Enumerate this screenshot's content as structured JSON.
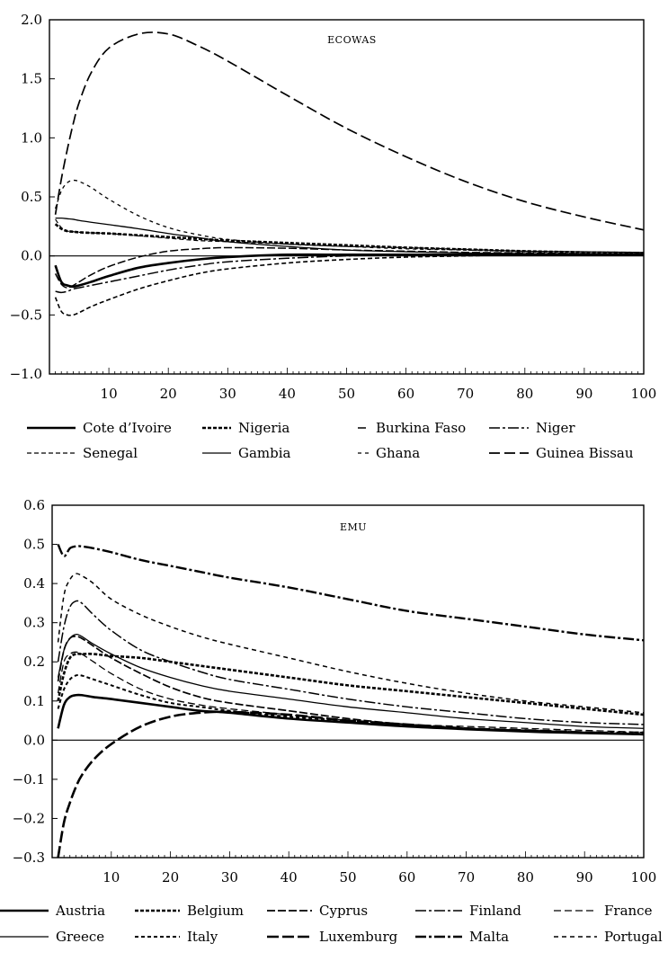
{
  "chart_data": [
    {
      "type": "line",
      "title": "ECOWAS",
      "xlabel": "",
      "ylabel": "",
      "xlim": [
        0,
        100
      ],
      "ylim": [
        -1.0,
        2.0
      ],
      "xticks": [
        10,
        20,
        30,
        40,
        50,
        60,
        70,
        80,
        90,
        100
      ],
      "xtick_labels": [
        "10",
        "20",
        "30",
        "40",
        "50",
        "60",
        "70",
        "80",
        "90",
        "100"
      ],
      "yticks": [
        -1.0,
        -0.5,
        0.0,
        0.5,
        1.0,
        1.5,
        2.0
      ],
      "ytick_labels": [
        "−1.0",
        "−0.5",
        "0.0",
        "0.5",
        "1.0",
        "1.5",
        "2.0"
      ],
      "zero_line": true,
      "grid": false,
      "legend_position": "bottom",
      "x": [
        1,
        2,
        3,
        4,
        5,
        7,
        10,
        15,
        20,
        25,
        30,
        40,
        50,
        60,
        70,
        80,
        90,
        100
      ],
      "series": [
        {
          "name": "Cote d’Ivoire",
          "dash": "solid",
          "width": 2.6,
          "values": [
            -0.08,
            -0.22,
            -0.25,
            -0.26,
            -0.25,
            -0.22,
            -0.17,
            -0.1,
            -0.06,
            -0.03,
            -0.01,
            0.01,
            0.01,
            0.01,
            0.01,
            0.01,
            0.01,
            0.01
          ]
        },
        {
          "name": "Nigeria",
          "dash": "4 2",
          "width": 2.6,
          "values": [
            0.27,
            0.23,
            0.21,
            0.205,
            0.2,
            0.195,
            0.19,
            0.175,
            0.16,
            0.145,
            0.13,
            0.11,
            0.09,
            0.07,
            0.055,
            0.04,
            0.03,
            0.02
          ]
        },
        {
          "name": "Burkina Faso",
          "dash": "9 3",
          "width": 1.5,
          "values": [
            -0.15,
            -0.24,
            -0.27,
            -0.25,
            -0.22,
            -0.16,
            -0.09,
            -0.01,
            0.04,
            0.06,
            0.07,
            0.065,
            0.05,
            0.04,
            0.03,
            0.025,
            0.02,
            0.02
          ]
        },
        {
          "name": "Niger",
          "dash": "12 3 3 3",
          "width": 1.5,
          "values": [
            -0.3,
            -0.31,
            -0.3,
            -0.28,
            -0.27,
            -0.25,
            -0.22,
            -0.17,
            -0.12,
            -0.08,
            -0.05,
            -0.02,
            0.0,
            0.01,
            0.01,
            0.01,
            0.01,
            0.01
          ]
        },
        {
          "name": "Senegal",
          "dash": "5 3",
          "width": 1.2,
          "values": [
            0.31,
            0.24,
            0.21,
            0.205,
            0.2,
            0.195,
            0.19,
            0.17,
            0.15,
            0.13,
            0.12,
            0.1,
            0.08,
            0.07,
            0.055,
            0.04,
            0.035,
            0.03
          ]
        },
        {
          "name": "Gambia",
          "dash": "solid",
          "width": 1.3,
          "values": [
            0.32,
            0.32,
            0.315,
            0.31,
            0.3,
            0.285,
            0.265,
            0.23,
            0.19,
            0.155,
            0.12,
            0.08,
            0.05,
            0.035,
            0.025,
            0.02,
            0.015,
            0.015
          ]
        },
        {
          "name": "Ghana",
          "dash": "4 4",
          "width": 1.3,
          "values": [
            0.4,
            0.55,
            0.62,
            0.64,
            0.63,
            0.58,
            0.48,
            0.34,
            0.24,
            0.18,
            0.14,
            0.1,
            0.08,
            0.06,
            0.05,
            0.04,
            0.035,
            0.03
          ]
        },
        {
          "name": "Guinea Bissau",
          "dash": "12 5",
          "width": 1.7,
          "values": [
            0.35,
            0.65,
            0.9,
            1.12,
            1.3,
            1.55,
            1.76,
            1.88,
            1.88,
            1.78,
            1.65,
            1.36,
            1.08,
            0.84,
            0.63,
            0.46,
            0.33,
            0.22
          ]
        },
        {
          "name": "",
          "dash": "5 3",
          "width": 1.6,
          "values": [
            -0.35,
            -0.47,
            -0.5,
            -0.5,
            -0.48,
            -0.43,
            -0.37,
            -0.28,
            -0.21,
            -0.15,
            -0.11,
            -0.06,
            -0.03,
            -0.01,
            0.0,
            0.01,
            0.01,
            0.01
          ]
        }
      ]
    },
    {
      "type": "line",
      "title": "EMU",
      "xlabel": "",
      "ylabel": "",
      "xlim": [
        0,
        100
      ],
      "ylim": [
        -0.3,
        0.6
      ],
      "xticks": [
        10,
        20,
        30,
        40,
        50,
        60,
        70,
        80,
        90,
        100
      ],
      "xtick_labels": [
        "10",
        "20",
        "30",
        "40",
        "50",
        "60",
        "70",
        "80",
        "90",
        "100"
      ],
      "yticks": [
        -0.3,
        -0.2,
        -0.1,
        0.0,
        0.1,
        0.2,
        0.3,
        0.4,
        0.5,
        0.6
      ],
      "ytick_labels": [
        "−0.3",
        "−0.2",
        "−0.1",
        "0.0",
        "0.1",
        "0.2",
        "0.3",
        "0.4",
        "0.5",
        "0.6"
      ],
      "zero_line": true,
      "grid": false,
      "legend_position": "bottom",
      "x": [
        1,
        2,
        3,
        4,
        5,
        7,
        10,
        15,
        20,
        25,
        30,
        40,
        50,
        60,
        70,
        80,
        90,
        100
      ],
      "series": [
        {
          "name": "Austria",
          "dash": "solid",
          "width": 2.6,
          "values": [
            0.03,
            0.09,
            0.11,
            0.115,
            0.115,
            0.11,
            0.105,
            0.095,
            0.085,
            0.075,
            0.07,
            0.055,
            0.045,
            0.035,
            0.028,
            0.022,
            0.018,
            0.015
          ]
        },
        {
          "name": "Belgium",
          "dash": "4 2",
          "width": 2.6,
          "values": [
            0.1,
            0.17,
            0.21,
            0.22,
            0.22,
            0.22,
            0.215,
            0.21,
            0.2,
            0.19,
            0.18,
            0.16,
            0.14,
            0.125,
            0.11,
            0.095,
            0.08,
            0.065
          ]
        },
        {
          "name": "Cyprus",
          "dash": "9 3",
          "width": 1.7,
          "values": [
            0.15,
            0.23,
            0.26,
            0.265,
            0.26,
            0.24,
            0.21,
            0.17,
            0.135,
            0.11,
            0.095,
            0.075,
            0.055,
            0.04,
            0.03,
            0.025,
            0.02,
            0.015
          ]
        },
        {
          "name": "Finland",
          "dash": "12 3 3 3",
          "width": 1.5,
          "values": [
            0.2,
            0.29,
            0.34,
            0.355,
            0.35,
            0.32,
            0.28,
            0.23,
            0.2,
            0.175,
            0.155,
            0.13,
            0.105,
            0.085,
            0.07,
            0.055,
            0.045,
            0.04
          ]
        },
        {
          "name": "France",
          "dash": "8 4",
          "width": 1.3,
          "values": [
            0.12,
            0.2,
            0.22,
            0.225,
            0.22,
            0.2,
            0.17,
            0.13,
            0.105,
            0.09,
            0.08,
            0.065,
            0.05,
            0.04,
            0.035,
            0.03,
            0.025,
            0.02
          ]
        },
        {
          "name": "Greece",
          "dash": "solid",
          "width": 1.3,
          "values": [
            0.16,
            0.23,
            0.26,
            0.27,
            0.265,
            0.245,
            0.22,
            0.185,
            0.16,
            0.14,
            0.125,
            0.105,
            0.085,
            0.07,
            0.055,
            0.045,
            0.035,
            0.03
          ]
        },
        {
          "name": "Italy",
          "dash": "4 3",
          "width": 2.0,
          "values": [
            0.08,
            0.13,
            0.155,
            0.165,
            0.165,
            0.155,
            0.14,
            0.115,
            0.095,
            0.085,
            0.075,
            0.06,
            0.05,
            0.04,
            0.03,
            0.025,
            0.02,
            0.02
          ]
        },
        {
          "name": "Luxemburg",
          "dash": "13 4",
          "width": 2.6,
          "values": [
            -0.3,
            -0.21,
            -0.16,
            -0.12,
            -0.09,
            -0.05,
            -0.01,
            0.035,
            0.06,
            0.07,
            0.072,
            0.065,
            0.05,
            0.04,
            0.03,
            0.025,
            0.02,
            0.015
          ]
        },
        {
          "name": "Malta",
          "dash": "12 3 3 3",
          "width": 2.4,
          "values": [
            0.5,
            0.47,
            0.49,
            0.495,
            0.495,
            0.49,
            0.48,
            0.46,
            0.445,
            0.43,
            0.415,
            0.39,
            0.36,
            0.33,
            0.31,
            0.29,
            0.27,
            0.255
          ]
        },
        {
          "name": "Portugal",
          "dash": "5 4",
          "width": 1.5,
          "values": [
            0.25,
            0.37,
            0.41,
            0.425,
            0.42,
            0.4,
            0.36,
            0.32,
            0.29,
            0.265,
            0.245,
            0.21,
            0.175,
            0.145,
            0.12,
            0.1,
            0.085,
            0.07
          ]
        }
      ]
    }
  ]
}
